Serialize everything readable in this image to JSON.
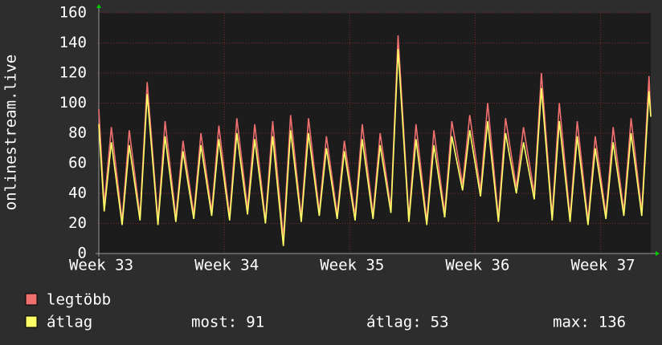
{
  "chart_data": {
    "type": "line",
    "ylabel": "onlinestream.live",
    "x": [
      0,
      0.3,
      0.7,
      1.3,
      1.7,
      2.3,
      2.7,
      3.3,
      3.7,
      4.3,
      4.7,
      5.3,
      5.7,
      6.3,
      6.7,
      7.3,
      7.7,
      8.3,
      8.7,
      9.3,
      9.7,
      10.3,
      10.7,
      11.3,
      11.7,
      12.3,
      12.7,
      13.3,
      13.7,
      14.3,
      14.7,
      15.3,
      15.7,
      16.3,
      16.7,
      17.3,
      17.7,
      18.3,
      18.7,
      19.3,
      19.7,
      20.3,
      20.7,
      21.3,
      21.7,
      22.3,
      22.7,
      23.3,
      23.7,
      24.3,
      24.7,
      25.3,
      25.7,
      26.3,
      26.7,
      27.3,
      27.7,
      28.3,
      28.7,
      29.3,
      29.7,
      30.3,
      30.7,
      30.8
    ],
    "series": [
      {
        "name": "legtöbb",
        "color": "#f07070",
        "values": [
          96,
          32,
          84,
          22,
          82,
          25,
          114,
          22,
          88,
          24,
          75,
          26,
          80,
          28,
          85,
          25,
          90,
          30,
          86,
          22,
          88,
          10,
          92,
          24,
          90,
          28,
          78,
          26,
          75,
          25,
          86,
          26,
          80,
          30,
          145,
          24,
          86,
          22,
          82,
          27,
          88,
          46,
          92,
          42,
          100,
          24,
          90,
          44,
          84,
          40,
          120,
          25,
          100,
          24,
          88,
          22,
          78,
          26,
          84,
          28,
          90,
          28,
          118,
          92
        ]
      },
      {
        "name": "átlag",
        "color": "#ffff66",
        "values": [
          86,
          28,
          74,
          19,
          72,
          22,
          106,
          19,
          78,
          21,
          68,
          23,
          72,
          25,
          76,
          22,
          80,
          26,
          76,
          20,
          78,
          5,
          82,
          21,
          80,
          25,
          70,
          23,
          68,
          22,
          76,
          23,
          72,
          27,
          136,
          21,
          76,
          19,
          72,
          24,
          78,
          42,
          82,
          38,
          88,
          21,
          80,
          40,
          74,
          36,
          110,
          22,
          88,
          21,
          78,
          19,
          70,
          23,
          74,
          25,
          80,
          25,
          108,
          91
        ]
      }
    ],
    "stats": [
      {
        "label": "most:",
        "value": 91
      },
      {
        "label": "átlag:",
        "value": 53
      },
      {
        "label": "max:",
        "value": 136
      }
    ],
    "xlim": [
      0,
      30.8
    ],
    "xticks": [
      {
        "value": 0,
        "label": "Week 33"
      },
      {
        "value": 7,
        "label": "Week 34"
      },
      {
        "value": 14,
        "label": "Week 35"
      },
      {
        "value": 21,
        "label": "Week 36"
      },
      {
        "value": 28,
        "label": "Week 37"
      }
    ],
    "ylim": [
      0,
      160
    ],
    "yticks": [
      0,
      20,
      40,
      60,
      80,
      100,
      120,
      140,
      160
    ],
    "grid": true
  }
}
